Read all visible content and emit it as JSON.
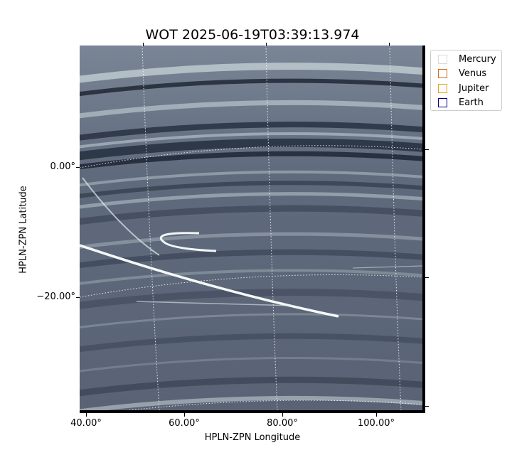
{
  "chart_data": {
    "type": "image",
    "title": "WOT 2025-06-19T03:39:13.974",
    "xlabel": "HPLN-ZPN Longitude",
    "ylabel": "HPLN-ZPN Latitude",
    "x_ticks": [
      "40.00°",
      "60.00°",
      "80.00°",
      "100.00°"
    ],
    "y_ticks": [
      "0.00°",
      "−20.00°"
    ],
    "legend": [
      {
        "name": "Mercury",
        "color": "#d9d9d9"
      },
      {
        "name": "Venus",
        "color": "#d2691e"
      },
      {
        "name": "Jupiter",
        "color": "#e3a21a"
      },
      {
        "name": "Earth",
        "color": "#000080"
      }
    ],
    "legend_position": "outside-top-right",
    "grid": true,
    "colormap": "bone"
  }
}
